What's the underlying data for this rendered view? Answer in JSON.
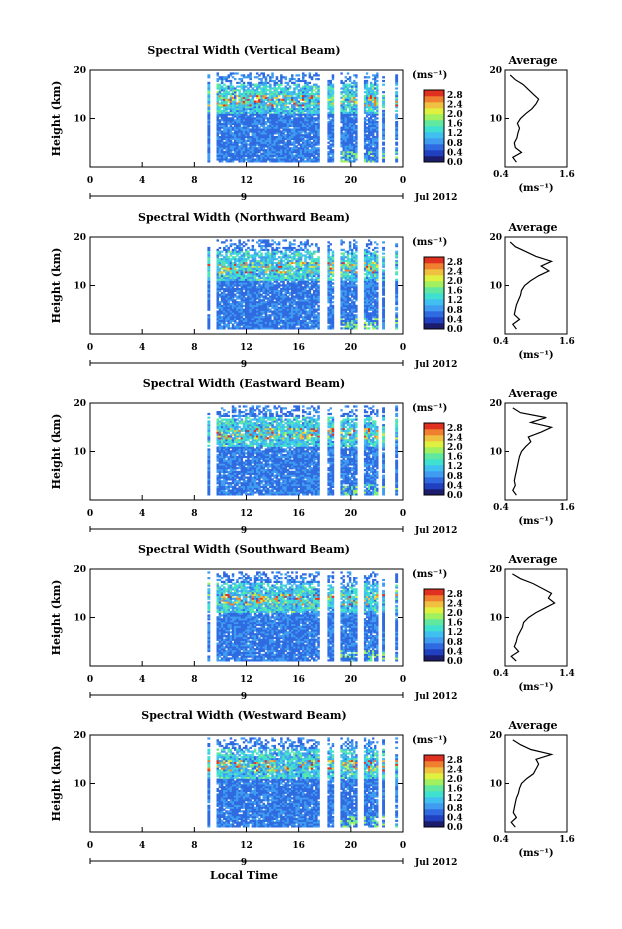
{
  "x_axis_label": "Local Time",
  "date_label": "Jul 2012",
  "day_marker": "9",
  "time_ticks": [
    "0",
    "4",
    "8",
    "12",
    "16",
    "20",
    "0"
  ],
  "height_ticks": [
    "20",
    "10"
  ],
  "height_axis_label": "Height (km)",
  "colorbar_unit": "(ms⁻¹)",
  "colorbar_ticks": [
    "2.8",
    "2.4",
    "2.0",
    "1.6",
    "1.2",
    "0.8",
    "0.4",
    "0.0"
  ],
  "average_title": "Average",
  "average_unit": "(ms⁻¹)",
  "colors": {
    "scale": [
      "#1c1c6c",
      "#2040c0",
      "#2f6ae0",
      "#3f9cf0",
      "#40c0f0",
      "#40e0d0",
      "#60e8a0",
      "#a0f060",
      "#e0f040",
      "#f0c040",
      "#f08030",
      "#e03020"
    ]
  },
  "chart_data": [
    {
      "type": "heatmap",
      "title": "Spectral Width (Vertical Beam)",
      "ylabel": "Height (km)",
      "xlabel": "Local Time",
      "xlim": [
        0,
        24
      ],
      "ylim": [
        0,
        20
      ],
      "color_range": [
        0.0,
        2.8
      ],
      "data_coverage_hours": [
        [
          9,
          9.2
        ],
        [
          9.7,
          17.6
        ],
        [
          18.2,
          18.7
        ],
        [
          19.2,
          20.5
        ],
        [
          21.0,
          22.1
        ],
        [
          22.4,
          22.6
        ],
        [
          23.4,
          23.6
        ]
      ],
      "average_profile": {
        "xlim": [
          0.4,
          1.6
        ],
        "xticks": [
          "0.4",
          "1.6"
        ],
        "height": [
          1,
          2,
          3,
          4,
          5,
          6,
          7,
          8,
          9,
          10,
          11,
          12,
          13,
          14,
          15,
          16,
          17,
          18,
          19
        ],
        "value": [
          0.62,
          0.55,
          0.72,
          0.6,
          0.58,
          0.63,
          0.65,
          0.68,
          0.64,
          0.7,
          0.8,
          0.92,
          1.0,
          1.05,
          0.95,
          0.85,
          0.75,
          0.6,
          0.5
        ]
      }
    },
    {
      "type": "heatmap",
      "title": "Spectral Width (Northward Beam)",
      "ylabel": "Height (km)",
      "xlabel": "Local Time",
      "xlim": [
        0,
        24
      ],
      "ylim": [
        0,
        20
      ],
      "color_range": [
        0.0,
        2.8
      ],
      "data_coverage_hours": [
        [
          9,
          9.2
        ],
        [
          9.7,
          17.6
        ],
        [
          18.2,
          18.7
        ],
        [
          19.2,
          20.5
        ],
        [
          21.0,
          22.1
        ],
        [
          22.4,
          22.6
        ],
        [
          23.4,
          23.6
        ]
      ],
      "average_profile": {
        "xlim": [
          0.4,
          1.6
        ],
        "xticks": [
          "0.4",
          "1.6"
        ],
        "height": [
          1,
          2,
          3,
          4,
          5,
          6,
          7,
          8,
          9,
          10,
          11,
          12,
          13,
          14,
          15,
          16,
          17,
          18,
          19
        ],
        "value": [
          0.62,
          0.55,
          0.68,
          0.58,
          0.6,
          0.62,
          0.66,
          0.7,
          0.72,
          0.78,
          0.9,
          1.05,
          1.25,
          1.1,
          1.3,
          1.0,
          0.8,
          0.6,
          0.5
        ]
      }
    },
    {
      "type": "heatmap",
      "title": "Spectral Width (Eastward Beam)",
      "ylabel": "Height (km)",
      "xlabel": "Local Time",
      "xlim": [
        0,
        24
      ],
      "ylim": [
        0,
        20
      ],
      "color_range": [
        0.0,
        2.8
      ],
      "data_coverage_hours": [
        [
          9,
          9.2
        ],
        [
          9.7,
          17.6
        ],
        [
          18.2,
          18.7
        ],
        [
          19.2,
          20.5
        ],
        [
          21.0,
          22.1
        ],
        [
          22.4,
          22.6
        ],
        [
          23.4,
          23.6
        ]
      ],
      "average_profile": {
        "xlim": [
          0.4,
          1.6
        ],
        "xticks": [
          "0.4",
          "1.6"
        ],
        "height": [
          1,
          2,
          3,
          4,
          5,
          6,
          7,
          8,
          9,
          10,
          11,
          12,
          13,
          14,
          15,
          16,
          17,
          18,
          19
        ],
        "value": [
          0.62,
          0.55,
          0.6,
          0.58,
          0.6,
          0.62,
          0.64,
          0.66,
          0.68,
          0.72,
          0.8,
          0.9,
          0.85,
          1.1,
          1.3,
          0.9,
          1.2,
          0.7,
          0.55
        ]
      }
    },
    {
      "type": "heatmap",
      "title": "Spectral Width (Southward Beam)",
      "ylabel": "Height (km)",
      "xlabel": "Local Time",
      "xlim": [
        0,
        24
      ],
      "ylim": [
        0,
        20
      ],
      "color_range": [
        0.0,
        2.8
      ],
      "data_coverage_hours": [
        [
          9,
          9.2
        ],
        [
          9.7,
          17.6
        ],
        [
          18.2,
          18.7
        ],
        [
          19.2,
          20.5
        ],
        [
          21.0,
          22.1
        ],
        [
          22.4,
          22.6
        ],
        [
          23.4,
          23.6
        ]
      ],
      "average_profile": {
        "xlim": [
          0.4,
          1.4
        ],
        "xticks": [
          "0.4",
          "1.4"
        ],
        "height": [
          1,
          2,
          3,
          4,
          5,
          6,
          7,
          8,
          9,
          10,
          11,
          12,
          13,
          14,
          15,
          16,
          17,
          18,
          19
        ],
        "value": [
          0.58,
          0.5,
          0.62,
          0.55,
          0.58,
          0.6,
          0.64,
          0.68,
          0.7,
          0.78,
          0.9,
          1.05,
          1.2,
          1.1,
          1.15,
          1.0,
          0.85,
          0.65,
          0.52
        ]
      }
    },
    {
      "type": "heatmap",
      "title": "Spectral Width (Westward Beam)",
      "ylabel": "Height (km)",
      "xlabel": "Local Time",
      "xlim": [
        0,
        24
      ],
      "ylim": [
        0,
        20
      ],
      "color_range": [
        0.0,
        2.8
      ],
      "data_coverage_hours": [
        [
          9,
          9.2
        ],
        [
          9.7,
          17.6
        ],
        [
          18.2,
          18.7
        ],
        [
          19.2,
          20.5
        ],
        [
          21.0,
          22.1
        ],
        [
          22.4,
          22.6
        ],
        [
          23.4,
          23.6
        ]
      ],
      "average_profile": {
        "xlim": [
          0.4,
          1.6
        ],
        "xticks": [
          "0.4",
          "1.6"
        ],
        "height": [
          1,
          2,
          3,
          4,
          5,
          6,
          7,
          8,
          9,
          10,
          11,
          12,
          13,
          14,
          15,
          16,
          17,
          18,
          19
        ],
        "value": [
          0.6,
          0.52,
          0.62,
          0.56,
          0.58,
          0.6,
          0.62,
          0.66,
          0.68,
          0.72,
          0.82,
          0.95,
          1.0,
          1.05,
          1.0,
          1.3,
          0.9,
          0.7,
          0.55
        ]
      }
    }
  ]
}
